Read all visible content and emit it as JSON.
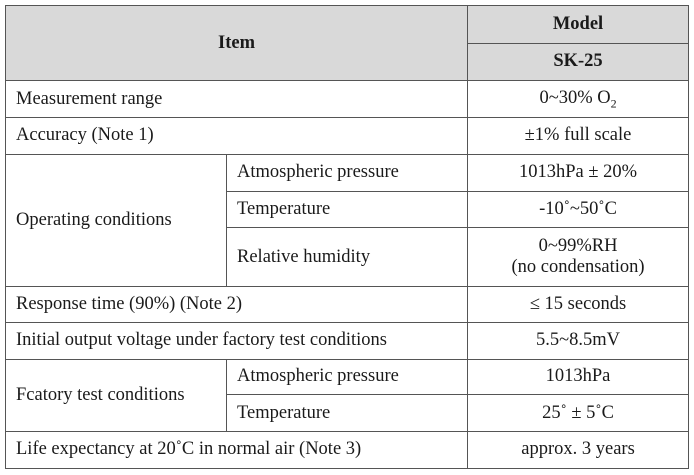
{
  "header": {
    "item": "Item",
    "model": "Model",
    "model_name": "SK-25"
  },
  "rows": {
    "measurement_range": {
      "label": "Measurement range",
      "value": "0~30% O",
      "value_sub": "2"
    },
    "accuracy": {
      "label": "Accuracy (Note 1)",
      "value": "±1% full scale"
    },
    "operating_conditions": {
      "label": "Operating conditions",
      "items": [
        {
          "label": "Atmospheric pressure",
          "value": "1013hPa ± 20%"
        },
        {
          "label": "Temperature",
          "value": "-10˚~50˚C"
        },
        {
          "label": "Relative humidity",
          "value": "0~99%RH",
          "value2": "(no condensation)"
        }
      ]
    },
    "response_time": {
      "label": "Response time (90%) (Note 2)",
      "value": "≤ 15 seconds"
    },
    "initial_output": {
      "label": "Initial output voltage under factory test conditions",
      "value": "5.5~8.5mV"
    },
    "factory_test_conditions": {
      "label": "Fcatory test conditions",
      "items": [
        {
          "label": "Atmospheric pressure",
          "value": "1013hPa"
        },
        {
          "label": "Temperature",
          "value": "25˚ ± 5˚C"
        }
      ]
    },
    "life_expectancy": {
      "label": "Life expectancy at 20˚C in normal air (Note 3)",
      "value": "approx. 3 years"
    }
  }
}
